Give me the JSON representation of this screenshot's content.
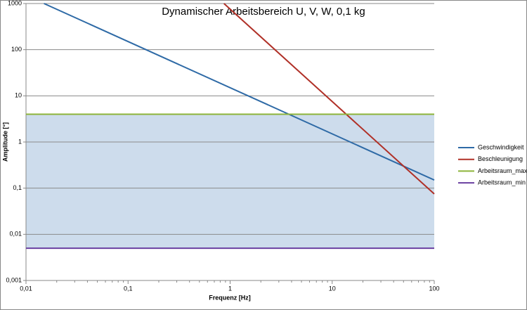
{
  "chart_data": {
    "type": "line",
    "title": "Dynamischer Arbeitsbereich U, V, W, 0,1 kg",
    "x_label": "Frequenz [Hz]",
    "y_label": "Amplitude [°]",
    "xscale": "log",
    "yscale": "log",
    "xlim": [
      0.01,
      100
    ],
    "ylim": [
      0.001,
      1000
    ],
    "xticks": [
      {
        "value": 0.01,
        "label": "0,01"
      },
      {
        "value": 0.1,
        "label": "0,1"
      },
      1,
      10,
      100
    ],
    "yticks": [
      {
        "value": 0.001,
        "label": "0,001"
      },
      {
        "value": 0.01,
        "label": "0,01"
      },
      {
        "value": 0.1,
        "label": "0,1"
      },
      1,
      10,
      100,
      1000
    ],
    "grid": true,
    "legend": "right",
    "fill_color": "#cddcec",
    "series": [
      {
        "name": "Geschwindigkeit",
        "color": "#2e6aa6",
        "x": [
          0.015,
          100
        ],
        "values": [
          1000,
          0.15
        ]
      },
      {
        "name": "Beschleunigung",
        "color": "#b03027",
        "x": [
          0.87,
          100
        ],
        "values": [
          1000,
          0.075
        ]
      },
      {
        "name": "Arbeitsraum_max",
        "color": "#8db43a",
        "x": [
          0.01,
          100
        ],
        "values": [
          4,
          4
        ]
      },
      {
        "name": "Arbeitsraum_min",
        "color": "#6a3fa0",
        "x": [
          0.01,
          100
        ],
        "values": [
          0.005,
          0.005
        ]
      }
    ]
  }
}
